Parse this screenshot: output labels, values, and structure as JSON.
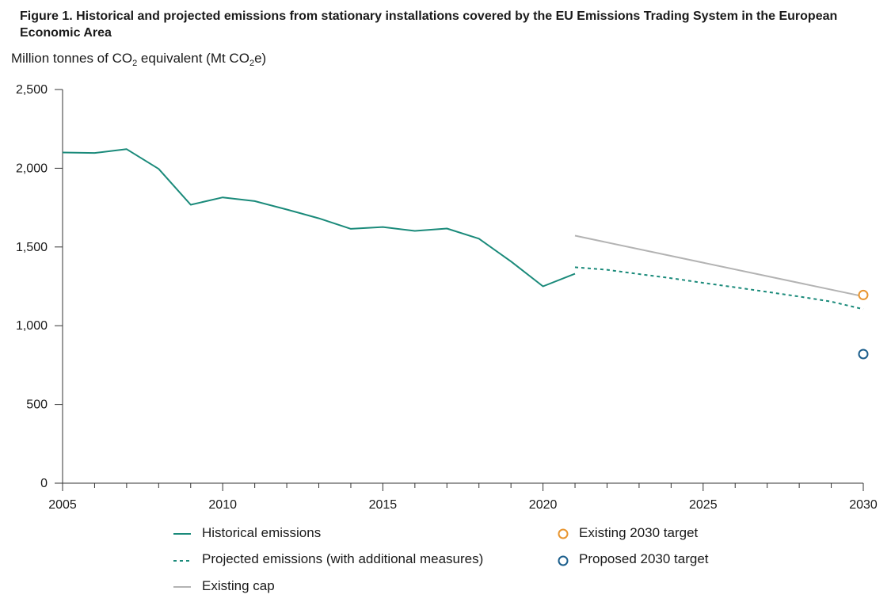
{
  "title": "Figure 1. Historical and projected emissions from stationary installations covered by the EU Emissions Trading System in the European Economic Area",
  "ylabel_parts": [
    "Million tonnes of CO",
    "2",
    " equivalent (Mt CO",
    "2",
    "e)"
  ],
  "chart_data": {
    "type": "line",
    "title": "Figure 1. Historical and projected emissions from stationary installations covered by the EU Emissions Trading System in the European Economic Area",
    "ylabel": "Million tonnes of CO2 equivalent (Mt CO2e)",
    "xlim": [
      2005,
      2030
    ],
    "ylim": [
      0,
      2500
    ],
    "x_ticks": [
      2005,
      2010,
      2015,
      2020,
      2025,
      2030
    ],
    "x_tick_labels": [
      "2005",
      "2010",
      "2015",
      "2020",
      "2025",
      "2030"
    ],
    "y_ticks": [
      0,
      500,
      1000,
      1500,
      2000,
      2500
    ],
    "y_tick_labels": [
      "0",
      "500",
      "1,000",
      "1,500",
      "2,000",
      "2,500"
    ],
    "grid": false,
    "legend_position": "bottom",
    "series": [
      {
        "name": "Historical emissions",
        "style": "solid",
        "color": "#1a8a7a",
        "x": [
          2005,
          2006,
          2007,
          2008,
          2009,
          2010,
          2011,
          2012,
          2013,
          2014,
          2015,
          2016,
          2017,
          2018,
          2019,
          2020,
          2021
        ],
        "y": [
          2100,
          2097,
          2121,
          1996,
          1768,
          1815,
          1791,
          1738,
          1682,
          1615,
          1627,
          1602,
          1617,
          1553,
          1408,
          1250,
          1330
        ]
      },
      {
        "name": "Projected emissions (with additional measures)",
        "style": "dotted",
        "color": "#1a8a7a",
        "x": [
          2021,
          2022,
          2023,
          2024,
          2025,
          2026,
          2027,
          2028,
          2029,
          2030
        ],
        "y": [
          1371,
          1355,
          1328,
          1302,
          1272,
          1244,
          1215,
          1185,
          1153,
          1105
        ]
      },
      {
        "name": "Existing cap",
        "style": "solid",
        "color": "#b3b3b3",
        "x": [
          2021,
          2030
        ],
        "y": [
          1572,
          1186
        ]
      },
      {
        "name": "Existing 2030 target",
        "style": "marker",
        "color": "#e8952f",
        "x": [
          2030
        ],
        "y": [
          1195
        ]
      },
      {
        "name": "Proposed 2030 target",
        "style": "marker",
        "color": "#1b5e8c",
        "x": [
          2030
        ],
        "y": [
          820
        ]
      }
    ]
  }
}
